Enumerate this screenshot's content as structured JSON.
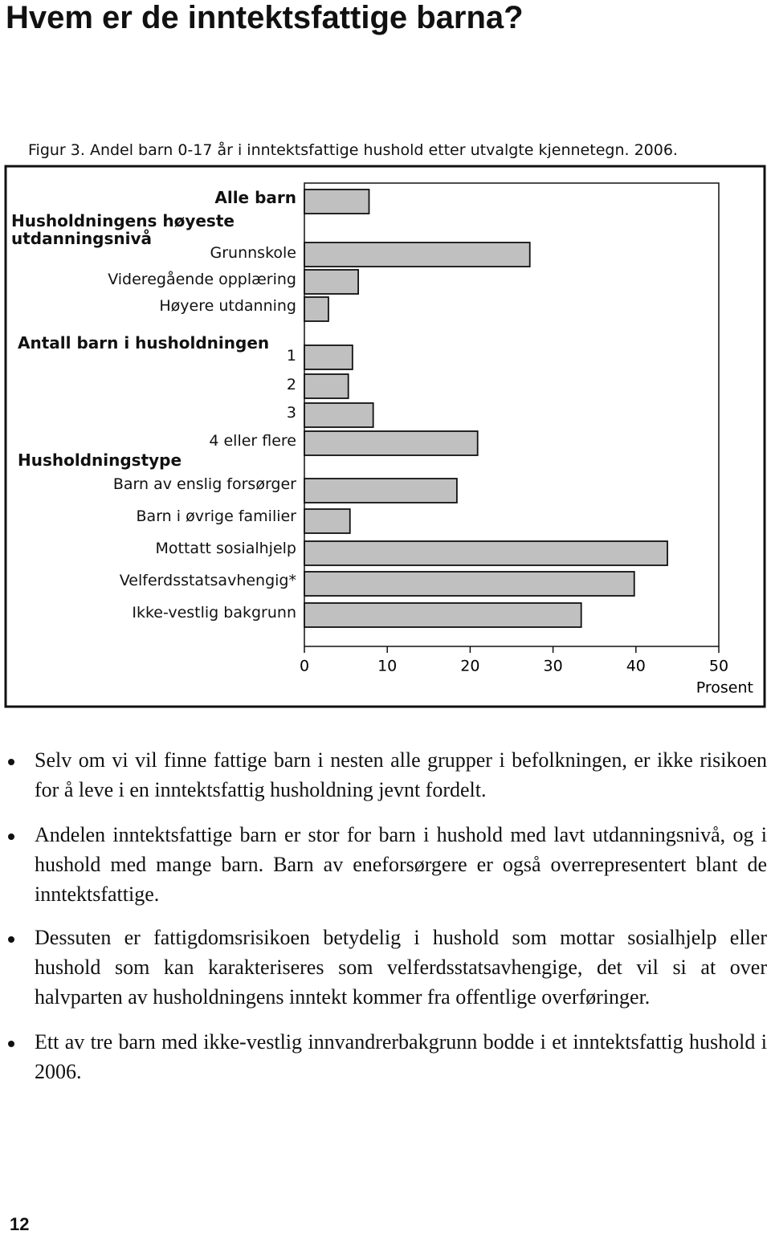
{
  "heading": "Hvem er de inntektsfattige barna?",
  "chart_data": {
    "type": "bar",
    "orientation": "horizontal",
    "title": "Figur 3. Andel barn 0-17 år i inntektsfattige hushold etter utvalgte kjennetegn. 2006.",
    "group_headers": [
      "Husholdningens høyeste utdanningsnivå",
      "Antall barn i husholdningen",
      "Husholdningstype"
    ],
    "categories": [
      "Alle barn",
      "Grunnskole",
      "Videregående opplæring",
      "Høyere utdanning",
      "1",
      "2",
      "3",
      "4 eller flere",
      "Barn av enslig forsørger",
      "Barn i øvrige familier",
      "Mottatt sosialhjelp",
      "Velferdsstatsavhengig*",
      "Ikke-vestlig bakgrunn"
    ],
    "values": [
      7.8,
      27.2,
      6.5,
      2.9,
      5.8,
      5.3,
      8.3,
      20.9,
      18.4,
      5.5,
      43.8,
      39.8,
      33.4
    ],
    "color": "#c0c0c0",
    "xlim": [
      0,
      50
    ],
    "xticks": [
      0,
      10,
      20,
      30,
      40,
      50
    ],
    "xlabel": "Prosent"
  },
  "bullets": [
    "Selv om vi vil finne fattige barn i nesten alle grupper i befolkningen, er ikke risikoen for å leve i en inntektsfattig husholdning jevnt fordelt.",
    "Andelen inntektsfattige barn er stor for barn i hushold med lavt utdanningsnivå, og i hushold med mange barn. Barn av eneforsørgere er også overrepresentert blant de inntektsfattige.",
    "Dessuten er fattigdomsrisikoen betydelig i hushold som mottar sosialhjelp eller hushold som kan karakteriseres som velferdsstatsavhengige, det vil si at over halvparten av husholdningens inntekt kommer fra offentlige overføringer.",
    "Ett av tre barn med ikke-vestlig innvandrerbakgrunn bodde i et inntektsfattig hushold i 2006."
  ],
  "page_number": "12"
}
